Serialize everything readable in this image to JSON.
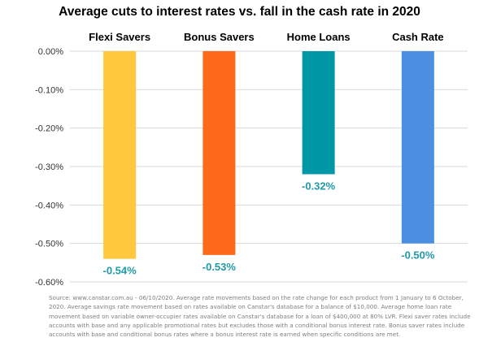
{
  "chart_data": {
    "type": "bar",
    "title": "Average cuts to interest rates vs. fall in the cash rate in 2020",
    "categories": [
      "Flexi Savers",
      "Bonus Savers",
      "Home Loans",
      "Cash Rate"
    ],
    "values": [
      -0.54,
      -0.53,
      -0.32,
      -0.5
    ],
    "data_labels": [
      "-0.54%",
      "-0.53%",
      "-0.32%",
      "-0.50%"
    ],
    "colors": [
      "#FFC83D",
      "#FF6A1A",
      "#0097A7",
      "#4A8FE0"
    ],
    "label_color": "#1F9AA6",
    "ylim": [
      -0.6,
      0
    ],
    "y_ticks": [
      0.0,
      -0.1,
      -0.2,
      -0.3,
      -0.4,
      -0.5,
      -0.6
    ],
    "y_tick_labels": [
      "0.00%",
      "-0.10%",
      "-0.20%",
      "-0.30%",
      "-0.40%",
      "-0.50%",
      "-0.60%"
    ],
    "grid": true,
    "category_axis_position": "top"
  },
  "source_note": "Source: www.canstar.com.au - 06/10/2020. Average rate movements based on the rate change for each product from 1 January to 6 October, 2020. Average savings rate movement based on rates available on Canstar's database for a balance of $10,000. Average home loan rate movement based on variable owner-occupier rates available on Canstar's database for a loan of $400,000 at 80% LVR. Flexi saver rates include accounts with base and any applicable promotional rates but excludes those with a conditional bonus interest rate. Bonus saver rates include accounts with base and conditional bonus rates where a bonus interest rate is earned when specific conditions are met."
}
